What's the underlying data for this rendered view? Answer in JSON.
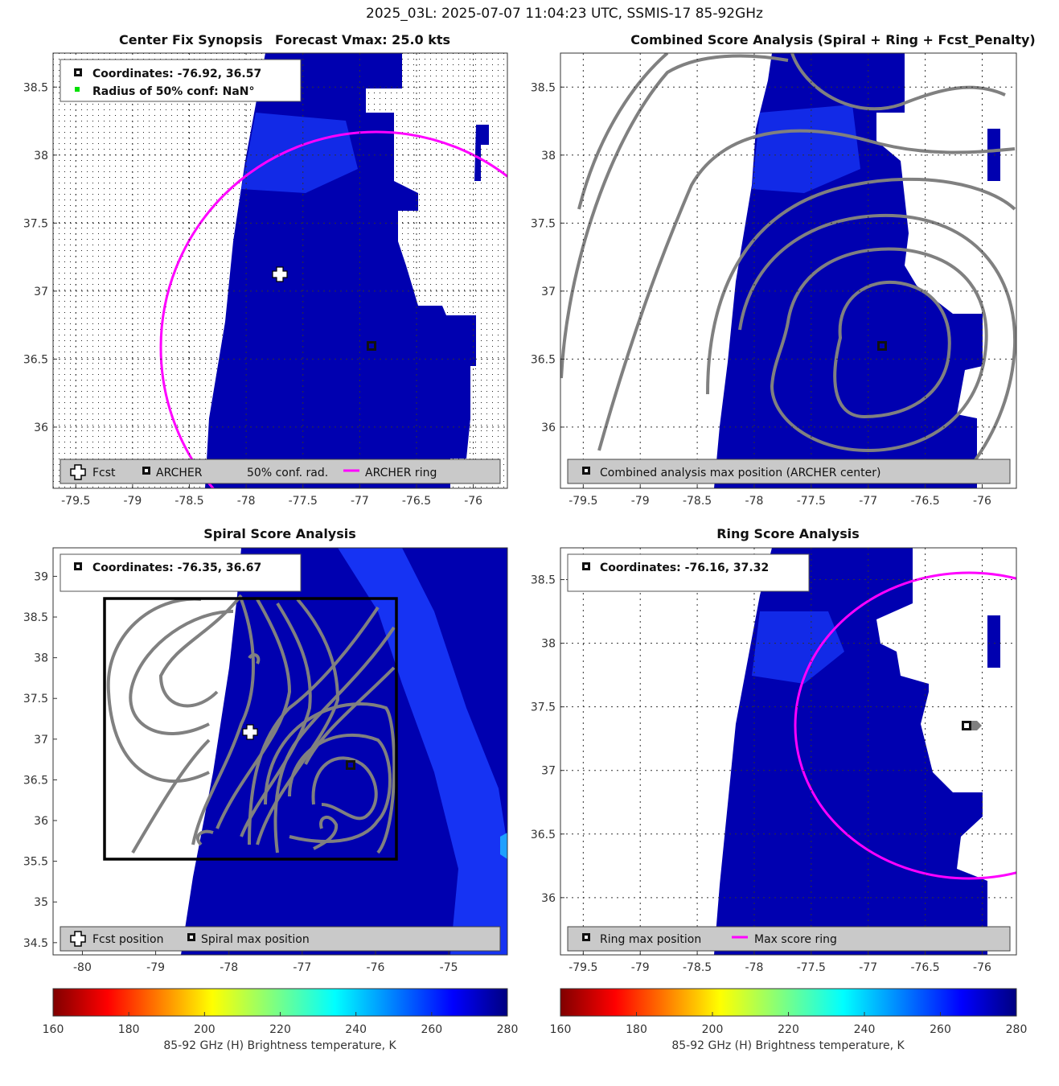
{
  "figure": {
    "title": "2025_03L: 2025-07-07 11:04:23 UTC, SSMIS-17 85-92GHz"
  },
  "colors": {
    "archer_ring": "#ff00ff",
    "contour": "#808080",
    "land_fill": "#ffffff",
    "cold_clouds": "#0000b4",
    "warm_scene": "#1a1aff"
  },
  "colorbar": {
    "label": "85-92 GHz (H) Brightness temperature, K",
    "ticks": [
      "160",
      "180",
      "200",
      "220",
      "240",
      "260",
      "280"
    ],
    "range": [
      160,
      280
    ],
    "colormap": "jet-reversed"
  },
  "panels": {
    "synopsis": {
      "title_left": "Center Fix Synopsis",
      "title_right": "Forecast Vmax: 25.0 kts",
      "info_line1": "Coordinates: -76.92, 36.57",
      "info_line2": "Radius of 50% conf: NaN°",
      "legend": {
        "fcst": "Fcst",
        "archer": "ARCHER",
        "conf": "50% conf. rad.",
        "ring": "ARCHER ring"
      },
      "x_ticks": [
        "-79.5",
        "-79",
        "-78.5",
        "-78",
        "-77.5",
        "-77",
        "-76.5",
        "-76"
      ],
      "y_ticks": [
        "36",
        "36.5",
        "37",
        "37.5",
        "38",
        "38.5"
      ]
    },
    "combined": {
      "title": "Combined Score Analysis (Spiral + Ring + Fcst_Penalty)",
      "legend": {
        "max": "Combined analysis max position (ARCHER center)"
      },
      "x_ticks": [
        "-79.5",
        "-79",
        "-78.5",
        "-78",
        "-77.5",
        "-77",
        "-76.5",
        "-76"
      ],
      "y_ticks": [
        "36",
        "36.5",
        "37",
        "37.5",
        "38",
        "38.5"
      ]
    },
    "spiral": {
      "title": "Spiral Score Analysis",
      "info_line1": "Coordinates: -76.35, 36.67",
      "legend": {
        "fcst": "Fcst position",
        "max": "Spiral max position"
      },
      "x_ticks": [
        "-80",
        "-79",
        "-78",
        "-77",
        "-76",
        "-75"
      ],
      "y_ticks": [
        "34.5",
        "35",
        "35.5",
        "36",
        "36.5",
        "37",
        "37.5",
        "38",
        "38.5",
        "39"
      ]
    },
    "ring": {
      "title": "Ring Score Analysis",
      "info_line1": "Coordinates: -76.16, 37.32",
      "legend": {
        "max": "Ring max position",
        "ring": "Max score ring"
      },
      "x_ticks": [
        "-79.5",
        "-79",
        "-78.5",
        "-78",
        "-77.5",
        "-77",
        "-76.5",
        "-76"
      ],
      "y_ticks": [
        "36",
        "36.5",
        "37",
        "37.5",
        "38",
        "38.5"
      ]
    }
  },
  "chart_data": [
    {
      "type": "heatmap",
      "title": "Center Fix Synopsis",
      "xlim": [
        -79.7,
        -75.7
      ],
      "ylim": [
        35.55,
        38.75
      ],
      "archer_center": [
        -76.92,
        36.57
      ],
      "forecast_position": [
        -77.72,
        37.12
      ],
      "archer_ring_radius_deg": 1.5,
      "forecast_vmax_kts": 25.0
    },
    {
      "type": "heatmap",
      "title": "Combined Score Analysis (Spiral + Ring + Fcst_Penalty)",
      "xlim": [
        -79.7,
        -75.7
      ],
      "ylim": [
        35.55,
        38.75
      ],
      "max_position": [
        -76.92,
        36.57
      ]
    },
    {
      "type": "heatmap",
      "title": "Spiral Score Analysis",
      "xlim": [
        -80.4,
        -74.2
      ],
      "ylim": [
        34.35,
        39.35
      ],
      "max_position": [
        -76.35,
        36.67
      ],
      "forecast_position": [
        -77.72,
        37.12
      ],
      "search_box": {
        "lon": [
          -79.8,
          -75.8
        ],
        "lat": [
          35.52,
          38.73
        ]
      }
    },
    {
      "type": "heatmap",
      "title": "Ring Score Analysis",
      "xlim": [
        -79.7,
        -75.7
      ],
      "ylim": [
        35.55,
        38.75
      ],
      "max_position": [
        -76.16,
        37.32
      ],
      "max_score_ring_radius_deg": 1.2
    }
  ]
}
